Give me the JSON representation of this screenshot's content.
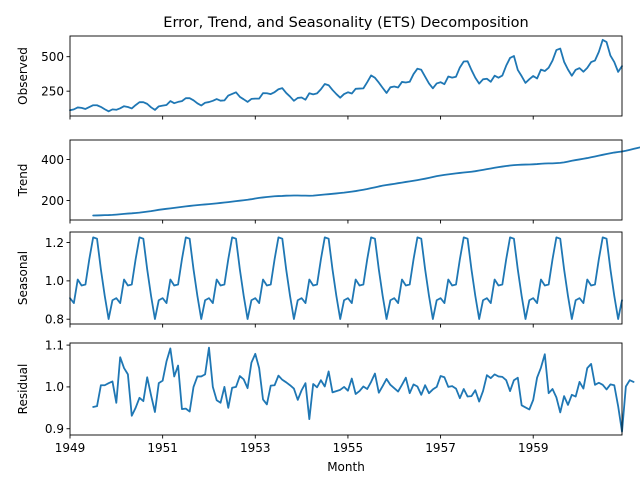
{
  "chart_data": {
    "type": "line",
    "title": "Error, Trend, and Seasonality (ETS) Decomposition",
    "xlabel": "Month",
    "x_start": "1949-01",
    "x_end": "1960-12",
    "x_ticks": [
      "1949",
      "1951",
      "1953",
      "1955",
      "1957",
      "1959"
    ],
    "color": "#1f77b4",
    "panels": [
      {
        "name": "observed",
        "ylabel": "Observed",
        "ylim": [
          70,
          650
        ],
        "yticks": [
          {
            "v": 250,
            "label": "250"
          },
          {
            "v": 500,
            "label": "500"
          }
        ],
        "start_index": 0,
        "values": [
          112,
          118,
          132,
          129,
          121,
          135,
          148,
          148,
          136,
          119,
          104,
          118,
          115,
          126,
          141,
          135,
          125,
          149,
          170,
          170,
          158,
          133,
          114,
          140,
          145,
          150,
          178,
          163,
          172,
          178,
          199,
          199,
          184,
          162,
          146,
          166,
          171,
          180,
          193,
          181,
          183,
          218,
          230,
          242,
          209,
          191,
          172,
          194,
          196,
          196,
          236,
          235,
          229,
          243,
          264,
          272,
          237,
          211,
          180,
          201,
          204,
          188,
          235,
          227,
          234,
          264,
          302,
          293,
          259,
          229,
          203,
          229,
          242,
          233,
          267,
          269,
          270,
          315,
          364,
          347,
          312,
          274,
          237,
          278,
          284,
          277,
          317,
          313,
          318,
          374,
          413,
          405,
          355,
          306,
          271,
          306,
          315,
          301,
          356,
          348,
          355,
          422,
          465,
          467,
          404,
          347,
          305,
          336,
          340,
          318,
          362,
          348,
          363,
          435,
          491,
          505,
          404,
          359,
          310,
          337,
          360,
          342,
          406,
          396,
          420,
          472,
          548,
          559,
          463,
          407,
          362,
          405,
          417,
          391,
          419,
          461,
          472,
          535,
          622,
          606,
          508,
          461,
          390,
          432
        ]
      },
      {
        "name": "trend",
        "ylabel": "Trend",
        "ylim": [
          105,
          495
        ],
        "yticks": [
          {
            "v": 200,
            "label": "200"
          },
          {
            "v": 400,
            "label": "400"
          }
        ],
        "start_index": 6,
        "values": [
          126.8,
          127.3,
          127.9,
          128.6,
          129.0,
          129.8,
          131.3,
          133.1,
          134.9,
          136.4,
          137.5,
          139.1,
          140.9,
          143.2,
          145.7,
          148.4,
          151.5,
          154.7,
          157.1,
          159.5,
          161.8,
          164.2,
          166.7,
          169.1,
          171.3,
          173.6,
          175.5,
          177.5,
          179.2,
          180.8,
          182.4,
          184.2,
          186.2,
          188.2,
          190.2,
          192.3,
          194.5,
          196.9,
          199.1,
          201.3,
          203.6,
          206.4,
          209.9,
          212.7,
          215.0,
          217.0,
          219.0,
          220.6,
          221.8,
          222.4,
          223.4,
          224.0,
          224.6,
          224.3,
          223.9,
          223.8,
          223.3,
          223.9,
          225.5,
          227.3,
          229.1,
          230.9,
          232.6,
          234.5,
          236.6,
          238.5,
          240.9,
          243.5,
          246.1,
          249.5,
          252.7,
          256.3,
          260.4,
          264.3,
          268.6,
          272.4,
          275.5,
          278.4,
          281.3,
          284.4,
          287.4,
          290.6,
          293.5,
          296.4,
          299.5,
          302.9,
          306.4,
          310.3,
          314.6,
          318.7,
          321.9,
          324.9,
          327.5,
          330.0,
          332.3,
          334.5,
          336.4,
          338.2,
          340.4,
          343.0,
          346.3,
          349.6,
          353.0,
          356.3,
          359.6,
          362.7,
          365.5,
          368.1,
          370.6,
          372.5,
          373.9,
          374.7,
          375.3,
          375.7,
          376.5,
          377.6,
          379.3,
          380.5,
          381.0,
          381.2,
          382.2,
          383.5,
          386.0,
          389.8,
          393.8,
          397.2,
          400.2,
          403.5,
          406.9,
          410.8,
          414.8,
          418.8,
          422.8,
          426.8,
          430.4,
          433.8,
          436.4,
          438.9,
          442.6,
          447.0,
          451.7,
          456.2,
          460.6,
          464.4,
          467.2,
          470.5,
          473.6,
          476.2
        ]
      },
      {
        "name": "seasonal",
        "ylabel": "Seasonal",
        "ylim": [
          0.775,
          1.255
        ],
        "yticks": [
          {
            "v": 0.8,
            "label": "0.8"
          },
          {
            "v": 1.0,
            "label": "1.0"
          },
          {
            "v": 1.2,
            "label": "1.2"
          }
        ],
        "start_index": 0,
        "cycle": [
          0.91,
          0.884,
          1.007,
          0.976,
          0.981,
          1.113,
          1.227,
          1.22,
          1.06,
          0.922,
          0.801,
          0.899
        ],
        "cycles": 12
      },
      {
        "name": "residual",
        "ylabel": "Residual",
        "ylim": [
          0.885,
          1.105
        ],
        "yticks": [
          {
            "v": 0.9,
            "label": "0.9"
          },
          {
            "v": 1.0,
            "label": "1.0"
          },
          {
            "v": 1.1,
            "label": "1.1"
          }
        ],
        "start_index": 6,
        "values": [
          0.952,
          0.954,
          1.004,
          1.004,
          1.009,
          1.013,
          0.962,
          1.071,
          1.045,
          1.03,
          0.931,
          0.95,
          0.974,
          0.966,
          1.023,
          0.98,
          0.94,
          1.009,
          1.015,
          1.061,
          1.092,
          1.025,
          1.051,
          0.947,
          0.948,
          0.941,
          1.0,
          1.025,
          1.025,
          1.03,
          1.094,
          1.0,
          0.968,
          0.962,
          1.0,
          0.95,
          0.998,
          1.0,
          1.026,
          1.018,
          0.997,
          1.058,
          1.079,
          1.045,
          0.97,
          0.958,
          1.003,
          1.004,
          1.027,
          1.017,
          1.011,
          1.004,
          0.996,
          0.969,
          0.992,
          1.009,
          0.923,
          1.007,
          0.999,
          1.016,
          1.001,
          1.037,
          0.987,
          0.99,
          0.993,
          1.0,
          0.991,
          1.02,
          0.983,
          0.99,
          1.001,
          0.995,
          1.012,
          1.032,
          0.986,
          1.002,
          1.019,
          1.005,
          0.997,
          0.989,
          1.005,
          1.022,
          0.985,
          1.006,
          1.001,
          0.981,
          1.004,
          0.985,
          0.994,
          1.0,
          1.026,
          1.023,
          1.0,
          1.002,
          0.996,
          0.973,
          0.995,
          0.977,
          0.978,
          0.992,
          0.965,
          0.99,
          1.028,
          1.021,
          1.03,
          1.025,
          1.024,
          1.016,
          0.99,
          1.016,
          1.022,
          0.956,
          0.951,
          0.946,
          0.969,
          1.022,
          1.046,
          1.078,
          0.985,
          0.995,
          0.975,
          0.939,
          0.978,
          0.957,
          0.981,
          0.977,
          1.012,
          0.996,
          1.045,
          1.055,
          1.005,
          1.01,
          1.005,
          0.994,
          1.006,
          1.004,
          0.954,
          0.893,
          1.001,
          1.016,
          1.012
        ]
      }
    ]
  }
}
